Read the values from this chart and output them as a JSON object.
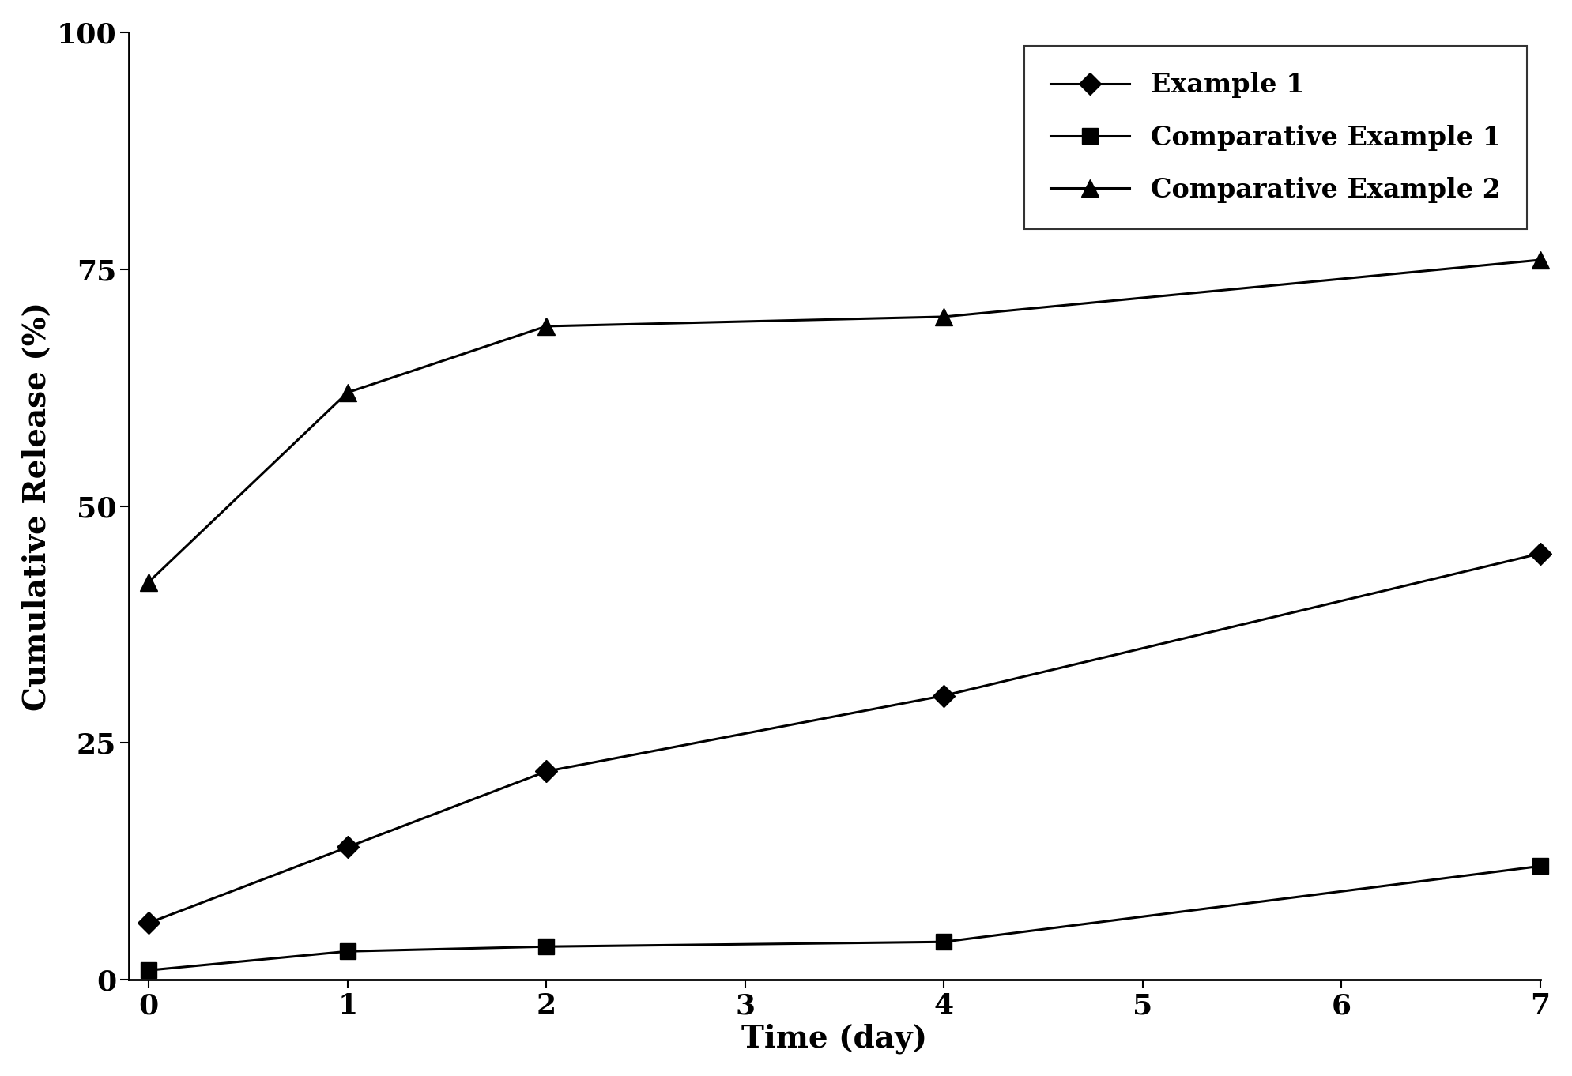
{
  "series": [
    {
      "label": "Example 1",
      "x": [
        0,
        1,
        2,
        4,
        7
      ],
      "y": [
        6,
        14,
        22,
        30,
        45
      ],
      "marker": "D",
      "color": "#000000",
      "markersize": 14,
      "linewidth": 2.2
    },
    {
      "label": "Comparative Example 1",
      "x": [
        0,
        1,
        2,
        4,
        7
      ],
      "y": [
        1,
        3,
        3.5,
        4,
        12
      ],
      "marker": "s",
      "color": "#000000",
      "markersize": 14,
      "linewidth": 2.2
    },
    {
      "label": "Comparative Example 2",
      "x": [
        0,
        1,
        2,
        4,
        7
      ],
      "y": [
        42,
        62,
        69,
        70,
        76
      ],
      "marker": "^",
      "color": "#000000",
      "markersize": 16,
      "linewidth": 2.2
    }
  ],
  "xlabel": "Time (day)",
  "ylabel": "Cumulative Release (%)",
  "xlim": [
    -0.1,
    7
  ],
  "ylim": [
    0,
    100
  ],
  "xticks": [
    0,
    1,
    2,
    3,
    4,
    5,
    6,
    7
  ],
  "yticks": [
    0,
    25,
    50,
    75,
    100
  ],
  "legend_loc": "upper right",
  "background_color": "#ffffff",
  "axis_color": "#000000",
  "label_fontsize": 28,
  "tick_fontsize": 26,
  "legend_fontsize": 24
}
